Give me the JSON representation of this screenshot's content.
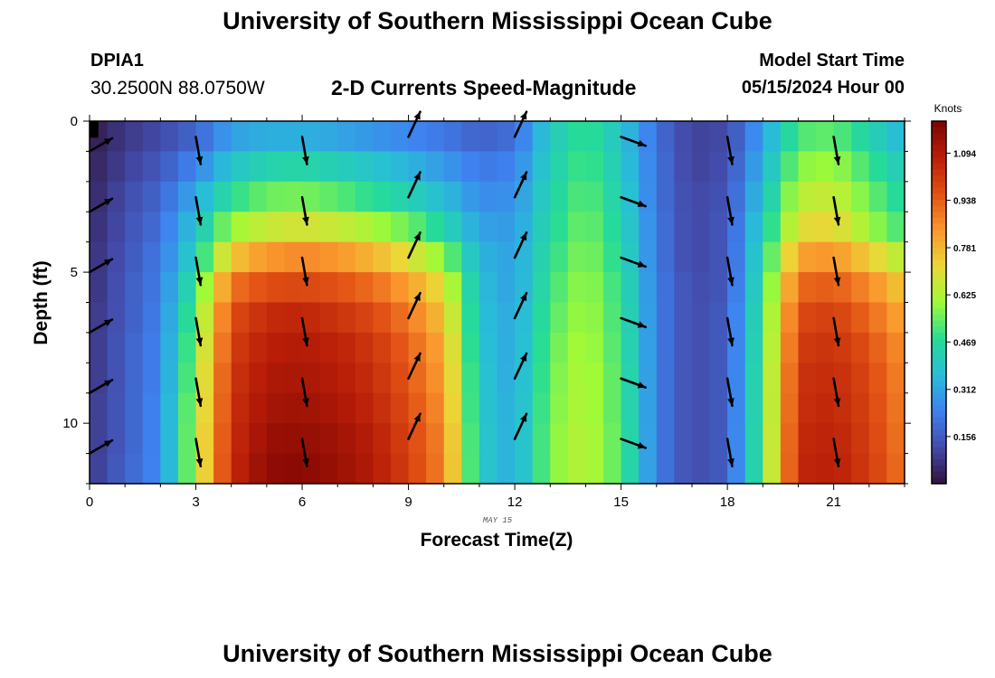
{
  "header": {
    "title": "University of Southern Mississippi Ocean Cube",
    "station_id": "DPIA1",
    "station_coords": "30.2500N  88.0750W",
    "subtitle": "2-D Currents Speed-Magnitude",
    "model_start_label": "Model Start Time",
    "model_start_value": "05/15/2024 Hour 00"
  },
  "footer": {
    "title": "University of Southern Mississippi Ocean Cube"
  },
  "chart_data": {
    "type": "heatmap",
    "title": "2-D Currents Speed-Magnitude",
    "xlabel": "Forecast Time(Z)",
    "ylabel": "Depth (ft)",
    "date_label": "MAY 15",
    "xlim": [
      0,
      23
    ],
    "ylim": [
      0,
      12
    ],
    "x_ticks": [
      0,
      3,
      6,
      9,
      12,
      15,
      18,
      21
    ],
    "y_ticks": [
      0,
      5,
      10
    ],
    "x_cells": 46,
    "depth_levels": 12,
    "colorbar": {
      "unit": "Knots",
      "min": 0.0,
      "max": 1.2,
      "ticks": [
        0.156,
        0.312,
        0.469,
        0.625,
        0.781,
        0.938,
        1.094
      ],
      "tick_labels": [
        "0.156",
        "0.312",
        "0.469",
        "0.625",
        "0.781",
        "0.938",
        "1.094"
      ]
    },
    "speed_profiles_knots": [
      [
        0.02,
        0.03,
        0.04,
        0.05,
        0.06,
        0.06,
        0.07,
        0.07,
        0.07,
        0.08,
        0.08,
        0.08
      ],
      [
        0.08,
        0.1,
        0.12,
        0.13,
        0.14,
        0.15,
        0.15,
        0.16,
        0.16,
        0.16,
        0.16,
        0.17
      ],
      [
        0.12,
        0.15,
        0.18,
        0.2,
        0.22,
        0.23,
        0.24,
        0.25,
        0.25,
        0.26,
        0.26,
        0.26
      ],
      [
        0.18,
        0.25,
        0.32,
        0.38,
        0.43,
        0.5,
        0.55,
        0.58,
        0.6,
        0.62,
        0.63,
        0.63
      ],
      [
        0.3,
        0.38,
        0.48,
        0.6,
        0.75,
        0.9,
        0.97,
        1.0,
        1.02,
        1.03,
        1.04,
        1.05
      ],
      [
        0.33,
        0.44,
        0.55,
        0.66,
        0.84,
        0.97,
        1.05,
        1.08,
        1.1,
        1.12,
        1.14,
        1.16
      ],
      [
        0.33,
        0.45,
        0.56,
        0.68,
        0.86,
        0.98,
        1.06,
        1.09,
        1.11,
        1.13,
        1.15,
        1.17
      ],
      [
        0.31,
        0.42,
        0.53,
        0.66,
        0.84,
        0.96,
        1.03,
        1.07,
        1.09,
        1.11,
        1.13,
        1.14
      ],
      [
        0.28,
        0.38,
        0.48,
        0.61,
        0.78,
        0.91,
        0.98,
        1.02,
        1.04,
        1.06,
        1.08,
        1.09
      ],
      [
        0.25,
        0.34,
        0.43,
        0.55,
        0.7,
        0.82,
        0.89,
        0.93,
        0.95,
        0.97,
        0.99,
        1.0
      ],
      [
        0.22,
        0.29,
        0.36,
        0.45,
        0.58,
        0.7,
        0.76,
        0.8,
        0.82,
        0.84,
        0.86,
        0.87
      ],
      [
        0.17,
        0.22,
        0.26,
        0.3,
        0.34,
        0.36,
        0.37,
        0.38,
        0.39,
        0.39,
        0.4,
        0.4
      ],
      [
        0.2,
        0.24,
        0.27,
        0.29,
        0.3,
        0.3,
        0.31,
        0.31,
        0.31,
        0.32,
        0.32,
        0.32
      ],
      [
        0.4,
        0.42,
        0.44,
        0.46,
        0.48,
        0.5,
        0.52,
        0.54,
        0.55,
        0.56,
        0.57,
        0.57
      ],
      [
        0.5,
        0.52,
        0.54,
        0.56,
        0.58,
        0.6,
        0.61,
        0.62,
        0.63,
        0.63,
        0.64,
        0.64
      ],
      [
        0.38,
        0.4,
        0.42,
        0.44,
        0.46,
        0.48,
        0.49,
        0.5,
        0.51,
        0.51,
        0.52,
        0.52
      ],
      [
        0.2,
        0.21,
        0.21,
        0.22,
        0.22,
        0.23,
        0.23,
        0.23,
        0.23,
        0.23,
        0.23,
        0.23
      ],
      [
        0.1,
        0.1,
        0.11,
        0.11,
        0.11,
        0.12,
        0.12,
        0.12,
        0.12,
        0.12,
        0.12,
        0.12
      ],
      [
        0.12,
        0.13,
        0.14,
        0.15,
        0.15,
        0.15,
        0.16,
        0.16,
        0.16,
        0.16,
        0.16,
        0.16
      ],
      [
        0.3,
        0.34,
        0.38,
        0.42,
        0.45,
        0.48,
        0.5,
        0.51,
        0.52,
        0.52,
        0.53,
        0.53
      ],
      [
        0.52,
        0.58,
        0.64,
        0.7,
        0.82,
        0.92,
        0.98,
        1.01,
        1.03,
        1.04,
        1.05,
        1.06
      ],
      [
        0.54,
        0.6,
        0.66,
        0.72,
        0.84,
        0.94,
        1.0,
        1.03,
        1.05,
        1.06,
        1.07,
        1.08
      ],
      [
        0.44,
        0.5,
        0.55,
        0.6,
        0.74,
        0.86,
        0.92,
        0.96,
        0.98,
        0.99,
        1.0,
        1.01
      ],
      [
        0.34,
        0.4,
        0.45,
        0.5,
        0.62,
        0.74,
        0.8,
        0.84,
        0.86,
        0.87,
        0.88,
        0.89
      ]
    ],
    "vectors": {
      "hours": [
        0,
        3,
        6,
        9,
        12,
        15,
        18,
        21
      ],
      "depths_ft": [
        1,
        3,
        5,
        7,
        9,
        11
      ],
      "direction_deg": [
        60,
        170,
        170,
        25,
        25,
        110,
        170,
        170
      ],
      "relative_length": [
        0.8,
        0.85,
        0.85,
        0.85,
        0.85,
        0.8,
        0.85,
        0.85
      ],
      "hour0_surface_extra": false
    }
  }
}
